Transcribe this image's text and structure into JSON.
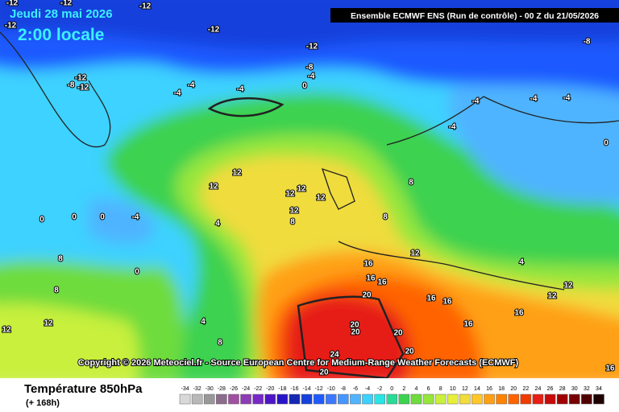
{
  "header": {
    "date": "Jeudi 28 mai 2026",
    "time": "2:00 locale",
    "run": "Ensemble ECMWF ENS  (Run de contrôle)  -  00 Z du 21/05/2026"
  },
  "map": {
    "copyright": "Copyright © 2026 Meteociel.fr - Source European Centre for Medium-Range Weather Forecasts (ECMWF)",
    "contour_labels": [
      "-12",
      "-12",
      "-12",
      "-12",
      "-12",
      "-12",
      "-8",
      "-8",
      "-4",
      "-12",
      "-8",
      "-12",
      "-4",
      "-4",
      "-4",
      "0",
      "-4",
      "-4",
      "-4",
      "-4",
      "0",
      "12",
      "12",
      "12",
      "12",
      "12",
      "12",
      "8",
      "8",
      "8",
      "-4",
      "0",
      "0",
      "0",
      "4",
      "8",
      "0",
      "16",
      "16",
      "16",
      "12",
      "4",
      "12",
      "12",
      "8",
      "20",
      "16",
      "16",
      "16",
      "12",
      "12",
      "4",
      "16",
      "20",
      "20",
      "20",
      "8",
      "24",
      "20",
      "20",
      "16"
    ]
  },
  "footer": {
    "title": "Température 850hPa",
    "subtitle": "(+ 168h)"
  },
  "legend": {
    "labels": [
      -34,
      -32,
      -30,
      -28,
      -26,
      -24,
      -22,
      -20,
      -18,
      -16,
      -14,
      -12,
      -10,
      -8,
      -6,
      -4,
      -2,
      0,
      2,
      4,
      6,
      8,
      10,
      12,
      14,
      16,
      18,
      20,
      22,
      24,
      26,
      28,
      30,
      32,
      34
    ],
    "colors": [
      "#d8d8d8",
      "#b8b8b8",
      "#989898",
      "#8c6c8c",
      "#a050a0",
      "#8c3cb4",
      "#7828c8",
      "#5014c8",
      "#2814c8",
      "#1428b4",
      "#1440dc",
      "#1e5aff",
      "#3c78ff",
      "#4696ff",
      "#50b4ff",
      "#3cd2ff",
      "#28e6e6",
      "#28dc96",
      "#3cd250",
      "#6edc3c",
      "#96e63c",
      "#c8f03c",
      "#e6f03c",
      "#f0dc3c",
      "#ffc828",
      "#ffa014",
      "#ff8200",
      "#ff6400",
      "#f03c00",
      "#e61e14",
      "#c80a0a",
      "#a00000",
      "#780000",
      "#500000",
      "#1e0000"
    ]
  }
}
